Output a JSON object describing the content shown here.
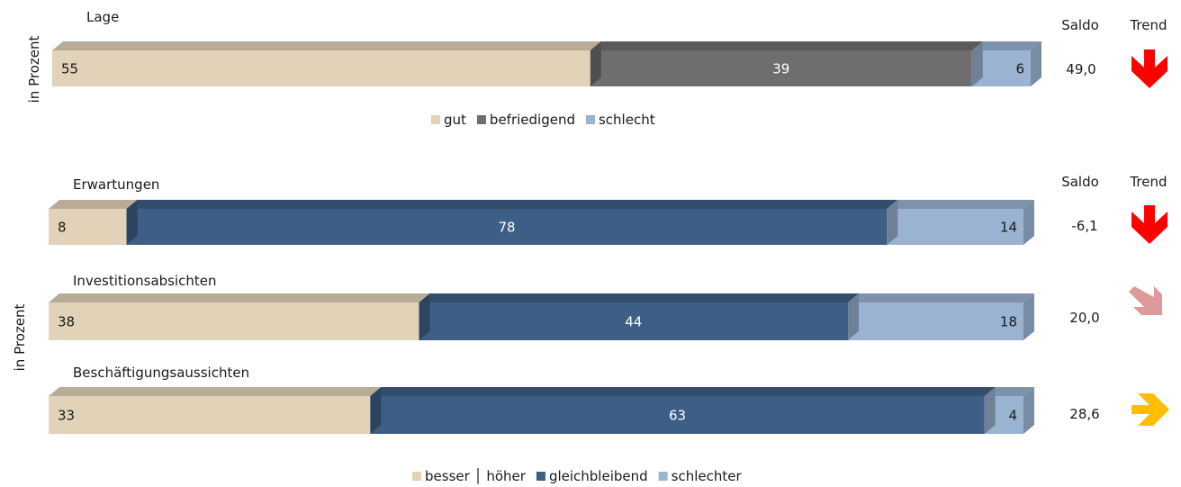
{
  "chart_data": [
    {
      "type": "bar",
      "stacked": true,
      "orientation": "horizontal",
      "ylabel": "in Prozent",
      "column_headers": {
        "saldo": "Saldo",
        "trend": "Trend"
      },
      "rows": [
        {
          "label": "Lage",
          "values": [
            55,
            39,
            6
          ],
          "saldo": "49,0",
          "trend": "down"
        }
      ],
      "series": [
        {
          "name": "gut",
          "color": "#e1d2b8"
        },
        {
          "name": "befriedigend",
          "color": "#6e6e6e"
        },
        {
          "name": "schlecht",
          "color": "#9ab3d1"
        }
      ],
      "xlim": [
        0,
        100
      ]
    },
    {
      "type": "bar",
      "stacked": true,
      "orientation": "horizontal",
      "ylabel": "in Prozent",
      "column_headers": {
        "saldo": "Saldo",
        "trend": "Trend"
      },
      "rows": [
        {
          "label": "Erwartungen",
          "values": [
            8,
            78,
            14
          ],
          "saldo": "-6,1",
          "trend": "down"
        },
        {
          "label": "Investitionsabsichten",
          "values": [
            38,
            44,
            18
          ],
          "saldo": "20,0",
          "trend": "down-right"
        },
        {
          "label": "Beschäftigungsaussichten",
          "values": [
            33,
            63,
            4
          ],
          "saldo": "28,6",
          "trend": "right"
        }
      ],
      "series": [
        {
          "name": "besser │ höher",
          "color": "#e1d2b8"
        },
        {
          "name": "gleichbleibend",
          "color": "#3e5f85"
        },
        {
          "name": "schlechter",
          "color": "#9ab3d1"
        }
      ],
      "xlim": [
        0,
        100
      ]
    }
  ],
  "colors": {
    "trend_down": "#ff0000",
    "trend_down_right": "#dc9a9a",
    "trend_right": "#ffbf00"
  }
}
